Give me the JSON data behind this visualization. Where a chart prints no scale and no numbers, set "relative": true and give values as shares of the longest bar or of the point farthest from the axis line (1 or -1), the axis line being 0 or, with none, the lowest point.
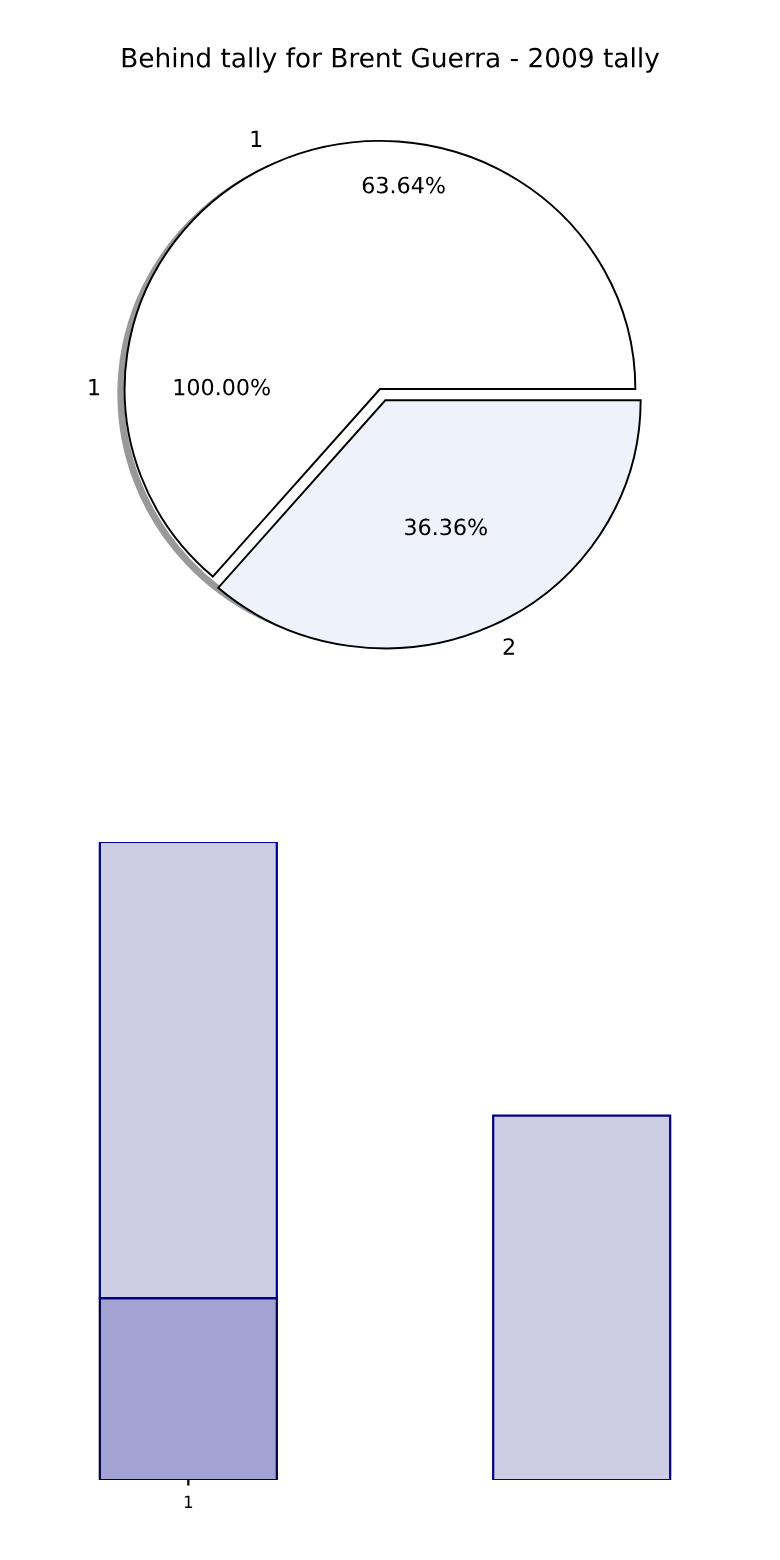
{
  "chart_data": [
    {
      "type": "pie",
      "title": "Behind tally for Brent Guerra - 2009 tally",
      "categories": [
        "1",
        "2"
      ],
      "values": [
        63.64,
        36.36
      ],
      "colors": [
        "#ffffff",
        "#eef2fb"
      ],
      "value_labels": [
        "63.64%",
        "36.36%"
      ],
      "annotations": [
        "1",
        "100.00%"
      ]
    },
    {
      "type": "bar",
      "relative": true,
      "stacked": true,
      "categories": [
        "1",
        null
      ],
      "series": [
        {
          "color": "#a3a3d3",
          "values": [
            0.285,
            null
          ]
        },
        {
          "color": "#cdcde6",
          "values": [
            0.715,
            0.571
          ]
        }
      ]
    }
  ]
}
